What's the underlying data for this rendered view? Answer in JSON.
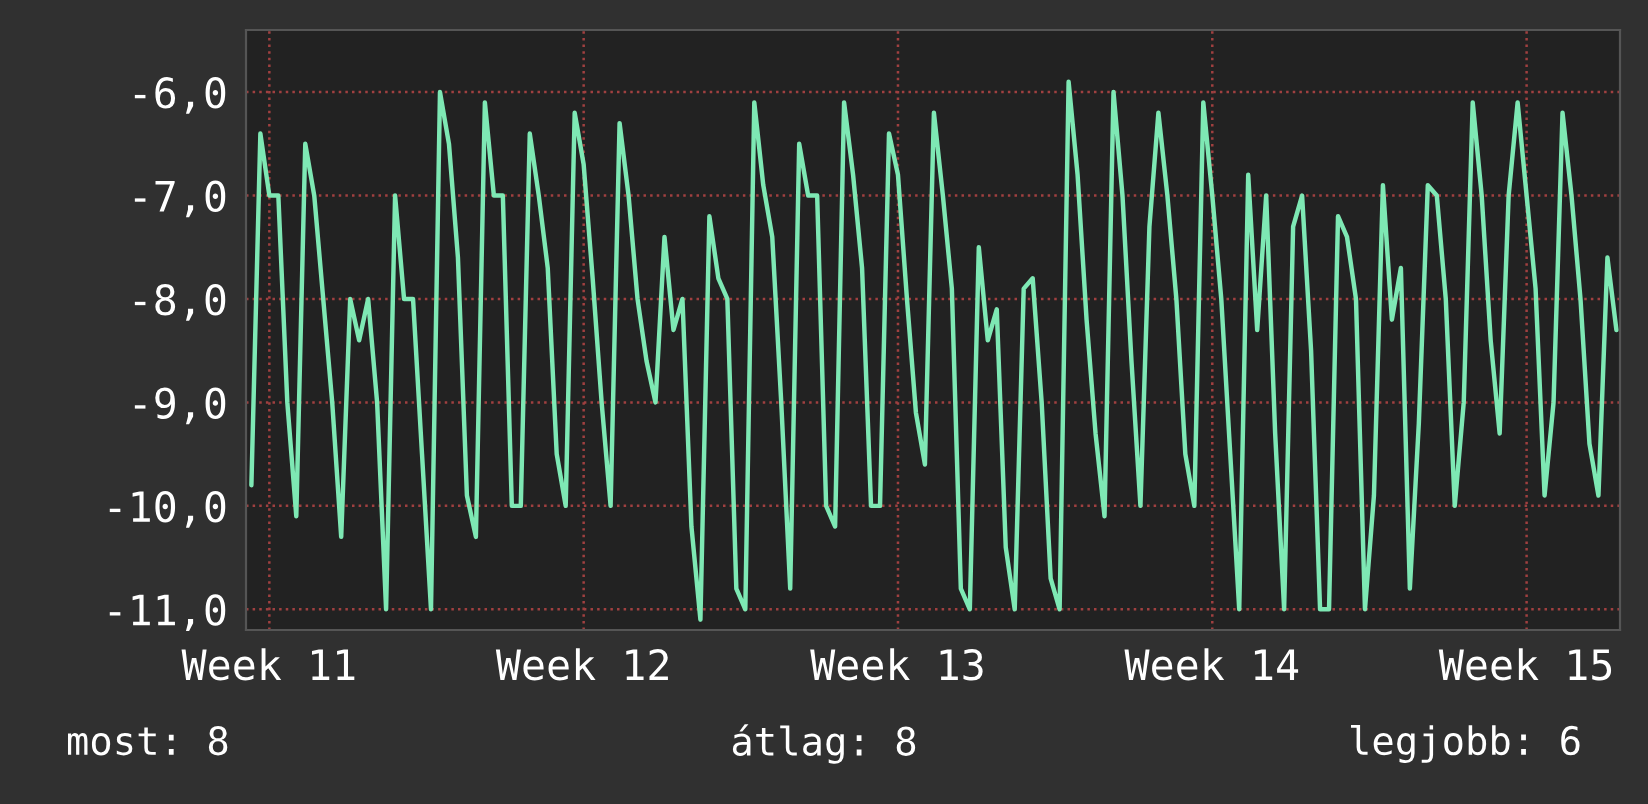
{
  "chart_data": {
    "type": "line",
    "categories": [
      null,
      null,
      "Week 11",
      null,
      null,
      null,
      null,
      null,
      null,
      null,
      null,
      null,
      null,
      null,
      null,
      null,
      null,
      null,
      null,
      null,
      null,
      null,
      null,
      null,
      null,
      null,
      null,
      null,
      null,
      null,
      null,
      null,
      null,
      null,
      null,
      null,
      null,
      "Week 12",
      null,
      null,
      null,
      null,
      null,
      null,
      null,
      null,
      null,
      null,
      null,
      null,
      null,
      null,
      null,
      null,
      null,
      null,
      null,
      null,
      null,
      null,
      null,
      null,
      null,
      null,
      null,
      null,
      null,
      null,
      null,
      null,
      null,
      null,
      "Week 13",
      null,
      null,
      null,
      null,
      null,
      null,
      null,
      null,
      null,
      null,
      null,
      null,
      null,
      null,
      null,
      null,
      null,
      null,
      null,
      null,
      null,
      null,
      null,
      null,
      null,
      null,
      null,
      null,
      null,
      null,
      null,
      null,
      null,
      null,
      "Week 14",
      null,
      null,
      null,
      null,
      null,
      null,
      null,
      null,
      null,
      null,
      null,
      null,
      null,
      null,
      null,
      null,
      null,
      null,
      null,
      null,
      null,
      null,
      null,
      null,
      null,
      null,
      null,
      null,
      null,
      null,
      null,
      null,
      null,
      null,
      "Week 15",
      null,
      null,
      null,
      null,
      null,
      null,
      null,
      null,
      null,
      null
    ],
    "series": [
      {
        "color": "#7ee8b4",
        "values": [
          -9.8,
          -6.4,
          -7.0,
          -7.0,
          -9.0,
          -10.1,
          -6.5,
          -7.0,
          -8.0,
          -9.0,
          -10.3,
          -8.0,
          -8.4,
          -8.0,
          -9.0,
          -11.0,
          -7.0,
          -8.0,
          -8.0,
          -9.5,
          -11.0,
          -6.0,
          -6.5,
          -7.6,
          -9.9,
          -10.3,
          -6.1,
          -7.0,
          -7.0,
          -10.0,
          -10.0,
          -6.4,
          -7.0,
          -7.7,
          -9.5,
          -10.0,
          -6.2,
          -6.7,
          -7.8,
          -9.0,
          -10.0,
          -6.3,
          -7.0,
          -8.0,
          -8.6,
          -9.0,
          -7.4,
          -8.3,
          -8.0,
          -10.2,
          -11.1,
          -7.2,
          -7.8,
          -8.0,
          -10.8,
          -11.0,
          -6.1,
          -6.9,
          -7.4,
          -9.0,
          -10.8,
          -6.5,
          -7.0,
          -7.0,
          -10.0,
          -10.2,
          -6.1,
          -6.8,
          -7.7,
          -10.0,
          -10.0,
          -6.4,
          -6.8,
          -8.0,
          -9.1,
          -9.6,
          -6.2,
          -7.0,
          -7.9,
          -10.8,
          -11.0,
          -7.5,
          -8.4,
          -8.1,
          -10.4,
          -11.0,
          -7.9,
          -7.8,
          -9.0,
          -10.7,
          -11.0,
          -5.9,
          -6.8,
          -8.2,
          -9.3,
          -10.1,
          -6.0,
          -7.0,
          -8.6,
          -10.0,
          -7.3,
          -6.2,
          -7.0,
          -8.0,
          -9.5,
          -10.0,
          -6.1,
          -7.0,
          -8.0,
          -9.5,
          -11.0,
          -6.8,
          -8.3,
          -7.0,
          -9.3,
          -11.0,
          -7.3,
          -7.0,
          -8.5,
          -11.0,
          -11.0,
          -7.2,
          -7.4,
          -8.0,
          -11.0,
          -9.9,
          -6.9,
          -8.2,
          -7.7,
          -10.8,
          -9.2,
          -6.9,
          -7.0,
          -8.0,
          -10.0,
          -9.0,
          -6.1,
          -7.0,
          -8.4,
          -9.3,
          -7.0,
          -6.1,
          -7.0,
          -7.9,
          -9.9,
          -9.0,
          -6.2,
          -7.0,
          -8.0,
          -9.4,
          -9.9,
          -7.6,
          -8.3
        ]
      }
    ],
    "ylim": [
      -11.2,
      -5.4
    ],
    "yticks": [
      {
        "value": -6,
        "label": "-6,0"
      },
      {
        "value": -7,
        "label": "-7,0"
      },
      {
        "value": -8,
        "label": "-8,0"
      },
      {
        "value": -9,
        "label": "-9,0"
      },
      {
        "value": -10,
        "label": "-10,0"
      },
      {
        "value": -11,
        "label": "-11,0"
      }
    ],
    "grid": true,
    "line_style": "solid",
    "annotations": [
      "most: 8",
      "átlag: 8",
      "legjobb: 6"
    ]
  }
}
